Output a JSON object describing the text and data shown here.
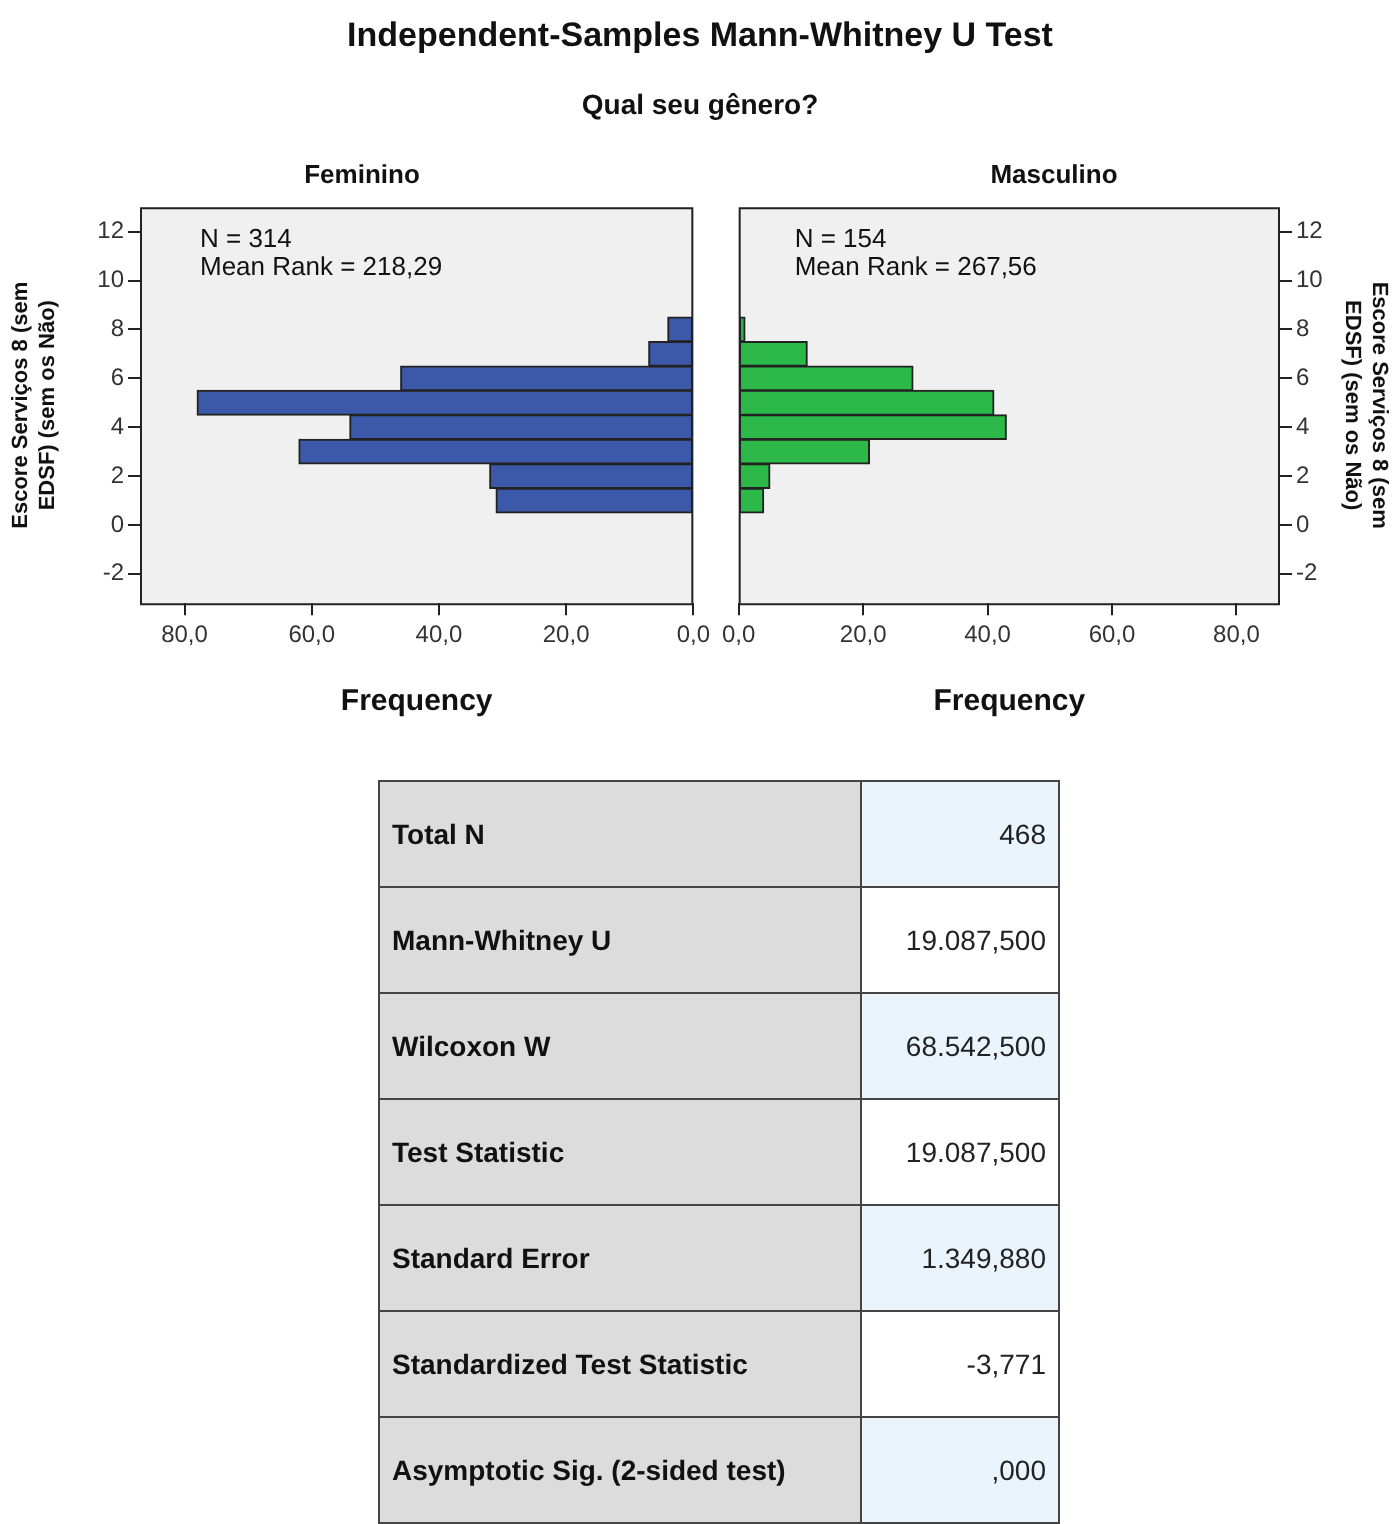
{
  "chart_data": [
    {
      "type": "other",
      "title": "Independent-Samples Mann-Whitney U Test",
      "subtitle": "Qual seu gênero?"
    },
    {
      "type": "histogram",
      "orientation": "horizontal",
      "title": "Feminino",
      "xlabel": "Frequency",
      "ylabel": "Escore Serviços 8 (sem EDSF) (sem os Não)",
      "bins": [
        0.5,
        1.5,
        2.5,
        3.5,
        4.5,
        5.5,
        6.5,
        7.5,
        8.5
      ],
      "values": [
        31,
        32,
        62,
        54,
        78,
        46,
        7,
        4
      ],
      "color": "#3c58a8",
      "xlim": [
        87,
        0
      ],
      "xticks": [
        {
          "value": 80,
          "label": "80,0"
        },
        {
          "value": 60,
          "label": "60,0"
        },
        {
          "value": 40,
          "label": "40,0"
        },
        {
          "value": 20,
          "label": "20,0"
        },
        {
          "value": 0,
          "label": "0,0"
        }
      ],
      "ylim": [
        -3.2,
        13
      ],
      "yticks": [
        -2,
        0,
        2,
        4,
        6,
        8,
        10,
        12
      ],
      "annotations": [
        "N = 314",
        "Mean Rank = 218,29"
      ]
    },
    {
      "type": "histogram",
      "orientation": "horizontal",
      "title": "Masculino",
      "xlabel": "Frequency",
      "ylabel": "Escore Serviços 8 (sem EDSF) (sem os Não)",
      "bins": [
        0.5,
        1.5,
        2.5,
        3.5,
        4.5,
        5.5,
        6.5,
        7.5,
        8.5
      ],
      "values": [
        4,
        5,
        21,
        43,
        41,
        28,
        11,
        1
      ],
      "color": "#2db84a",
      "xlim": [
        0,
        87
      ],
      "xticks": [
        {
          "value": 0,
          "label": "0,0"
        },
        {
          "value": 20,
          "label": "20,0"
        },
        {
          "value": 40,
          "label": "40,0"
        },
        {
          "value": 60,
          "label": "60,0"
        },
        {
          "value": 80,
          "label": "80,0"
        }
      ],
      "ylim": [
        -3.2,
        13
      ],
      "yticks": [
        -2,
        0,
        2,
        4,
        6,
        8,
        10,
        12
      ],
      "annotations": [
        "N = 154",
        "Mean Rank = 267,56"
      ]
    },
    {
      "type": "other",
      "categories": [
        "Total N",
        "Mann-Whitney U",
        "Wilcoxon W",
        "Test Statistic",
        "Standard Error",
        "Standardized Test Statistic",
        "Asymptotic Sig. (2-sided test)"
      ],
      "value_labels": [
        "468",
        "19.087,500",
        "68.542,500",
        "19.087,500",
        "1.349,880",
        "-3,771",
        ",000"
      ]
    }
  ]
}
